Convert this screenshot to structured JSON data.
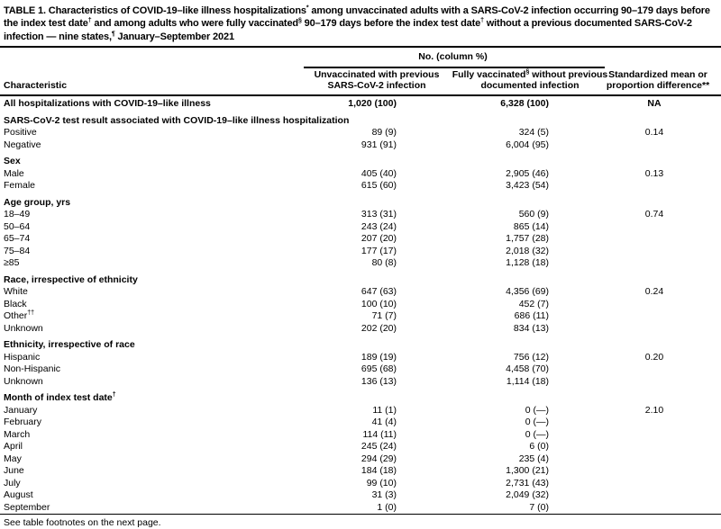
{
  "title": {
    "segments": [
      {
        "text": "TABLE 1. Characteristics of COVID-19–like illness hospitalizations"
      },
      {
        "sup": "*"
      },
      {
        "text": " among unvaccinated adults with a SARS-CoV-2 infection occurring 90–179 days before the index test date"
      },
      {
        "sup": "†"
      },
      {
        "text": " and among adults who were fully vaccinated"
      },
      {
        "sup": "§"
      },
      {
        "text": " 90–179 days before the index test date"
      },
      {
        "sup": "†"
      },
      {
        "text": " without a previous documented SARS-CoV-2 infection — nine states,"
      },
      {
        "sup": "¶"
      },
      {
        "text": " January–September 2021"
      }
    ]
  },
  "header": {
    "spanner": "No. (column %)",
    "characteristic": "Characteristic",
    "col2": "Unvaccinated with previous SARS-CoV-2 infection",
    "col3": {
      "pre": "Fully vaccinated",
      "sup": "§",
      "post": " without previous documented infection"
    },
    "col4": "Standardized mean or proportion difference**"
  },
  "rows": [
    {
      "style": "total",
      "label": "All hospitalizations with COVID-19–like illness",
      "unvacc": "1,020 (100)",
      "vacc": "6,328 (100)",
      "smd": "NA"
    },
    {
      "style": "section",
      "label": "SARS-CoV-2 test result associated with COVID-19–like illness hospitalization"
    },
    {
      "style": "data",
      "label": "Positive",
      "unvacc": "89 (9)",
      "vacc": "324 (5)",
      "smd": "0.14"
    },
    {
      "style": "data",
      "label": "Negative",
      "unvacc": "931 (91)",
      "vacc": "6,004 (95)",
      "smd": ""
    },
    {
      "style": "section",
      "label": "Sex"
    },
    {
      "style": "data",
      "label": "Male",
      "unvacc": "405 (40)",
      "vacc": "2,905 (46)",
      "smd": "0.13"
    },
    {
      "style": "data",
      "label": "Female",
      "unvacc": "615 (60)",
      "vacc": "3,423 (54)",
      "smd": ""
    },
    {
      "style": "section",
      "label": "Age group, yrs"
    },
    {
      "style": "data",
      "label": "18–49",
      "unvacc": "313 (31)",
      "vacc": "560 (9)",
      "smd": "0.74"
    },
    {
      "style": "data",
      "label": "50–64",
      "unvacc": "243 (24)",
      "vacc": "865 (14)",
      "smd": ""
    },
    {
      "style": "data",
      "label": "65–74",
      "unvacc": "207 (20)",
      "vacc": "1,757 (28)",
      "smd": ""
    },
    {
      "style": "data",
      "label": "75–84",
      "unvacc": "177 (17)",
      "vacc": "2,018 (32)",
      "smd": ""
    },
    {
      "style": "data",
      "label": "≥85",
      "unvacc": "80 (8)",
      "vacc": "1,128 (18)",
      "smd": ""
    },
    {
      "style": "section",
      "label": "Race, irrespective of ethnicity"
    },
    {
      "style": "data",
      "label": "White",
      "unvacc": "647 (63)",
      "vacc": "4,356 (69)",
      "smd": "0.24"
    },
    {
      "style": "data",
      "label": "Black",
      "unvacc": "100 (10)",
      "vacc": "452 (7)",
      "smd": ""
    },
    {
      "style": "data",
      "label": "Other",
      "label_sup": "††",
      "unvacc": "71 (7)",
      "vacc": "686 (11)",
      "smd": ""
    },
    {
      "style": "data",
      "label": "Unknown",
      "unvacc": "202 (20)",
      "vacc": "834 (13)",
      "smd": ""
    },
    {
      "style": "section",
      "label": "Ethnicity, irrespective of race"
    },
    {
      "style": "data",
      "label": "Hispanic",
      "unvacc": "189 (19)",
      "vacc": "756 (12)",
      "smd": "0.20"
    },
    {
      "style": "data",
      "label": "Non-Hispanic",
      "unvacc": "695 (68)",
      "vacc": "4,458 (70)",
      "smd": ""
    },
    {
      "style": "data",
      "label": "Unknown",
      "unvacc": "136 (13)",
      "vacc": "1,114 (18)",
      "smd": ""
    },
    {
      "style": "section",
      "label": "Month of index test date",
      "label_sup": "†"
    },
    {
      "style": "data",
      "label": "January",
      "unvacc": "11 (1)",
      "vacc": "0 (—)",
      "smd": "2.10"
    },
    {
      "style": "data",
      "label": "February",
      "unvacc": "41 (4)",
      "vacc": "0 (—)",
      "smd": ""
    },
    {
      "style": "data",
      "label": "March",
      "unvacc": "114 (11)",
      "vacc": "0 (—)",
      "smd": ""
    },
    {
      "style": "data",
      "label": "April",
      "unvacc": "245 (24)",
      "vacc": "6 (0)",
      "smd": ""
    },
    {
      "style": "data",
      "label": "May",
      "unvacc": "294 (29)",
      "vacc": "235 (4)",
      "smd": ""
    },
    {
      "style": "data",
      "label": "June",
      "unvacc": "184 (18)",
      "vacc": "1,300 (21)",
      "smd": ""
    },
    {
      "style": "data",
      "label": "July",
      "unvacc": "99 (10)",
      "vacc": "2,731 (43)",
      "smd": ""
    },
    {
      "style": "data",
      "label": "August",
      "unvacc": "31 (3)",
      "vacc": "2,049 (32)",
      "smd": ""
    },
    {
      "style": "data",
      "label": "September",
      "unvacc": "1 (0)",
      "vacc": "7 (0)",
      "smd": ""
    }
  ],
  "footer": {
    "note": "See table footnotes on the next page."
  },
  "colors": {
    "text": "#000000",
    "rule": "#000000",
    "background": "#ffffff"
  }
}
